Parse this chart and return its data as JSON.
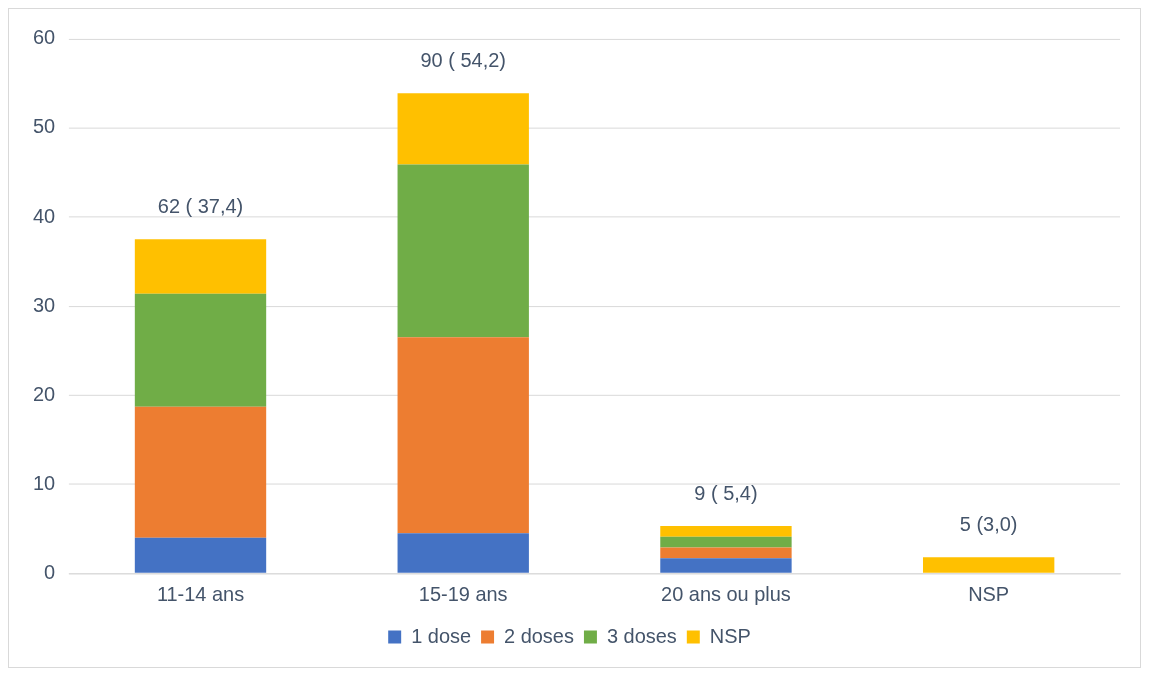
{
  "chart_data": {
    "type": "bar",
    "stacked": true,
    "categories": [
      "11-14 ans",
      "15-19 ans",
      "20 ans ou plus",
      "NSP"
    ],
    "series": [
      {
        "name": "1 dose",
        "color": "#4472c4",
        "values": [
          4.0,
          4.5,
          1.7,
          0
        ]
      },
      {
        "name": "2 doses",
        "color": "#ed7d31",
        "values": [
          14.7,
          22.0,
          1.2,
          0
        ]
      },
      {
        "name": "3 doses",
        "color": "#70ad47",
        "values": [
          12.7,
          19.4,
          1.2,
          0
        ]
      },
      {
        "name": "NSP",
        "color": "#ffc000",
        "values": [
          6.1,
          8.0,
          1.2,
          1.8
        ]
      }
    ],
    "totals": [
      "62 ( 37,4)",
      "90 ( 54,2)",
      "9 ( 5,4)",
      "5 (3,0)"
    ],
    "ylim": [
      0,
      60
    ],
    "yticks": [
      0,
      10,
      20,
      30,
      40,
      50,
      60
    ],
    "grid": "y",
    "legend": "bottom"
  }
}
